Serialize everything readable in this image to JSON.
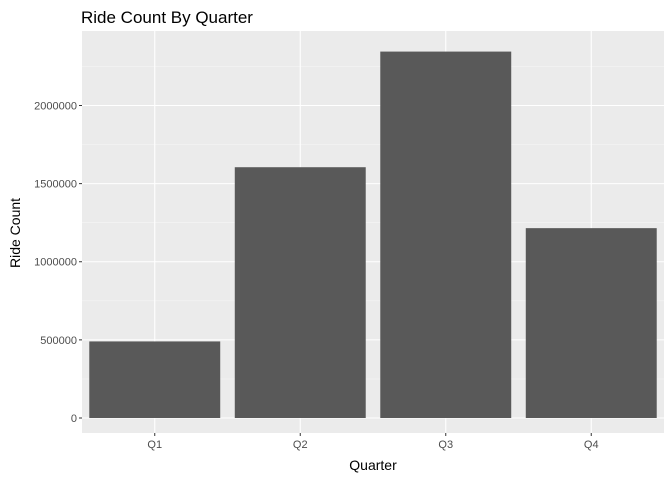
{
  "chart_data": {
    "type": "bar",
    "title": "Ride Count By Quarter",
    "xlabel": "Quarter",
    "ylabel": "Ride Count",
    "categories": [
      "Q1",
      "Q2",
      "Q3",
      "Q4"
    ],
    "values": [
      490000,
      1605000,
      2345000,
      1215000
    ],
    "ylim": [
      0,
      2450000
    ],
    "yticks": [
      0,
      500000,
      1000000,
      1500000,
      2000000
    ],
    "ytick_labels": [
      "0",
      "500000",
      "1000000",
      "1500000",
      "2000000"
    ],
    "grid": true,
    "legend": "none",
    "colors": {
      "bar": "#595959",
      "panel": "#ebebeb",
      "grid_major": "#ffffff",
      "grid_minor": "#f5f5f5",
      "tick": "#333333"
    }
  }
}
